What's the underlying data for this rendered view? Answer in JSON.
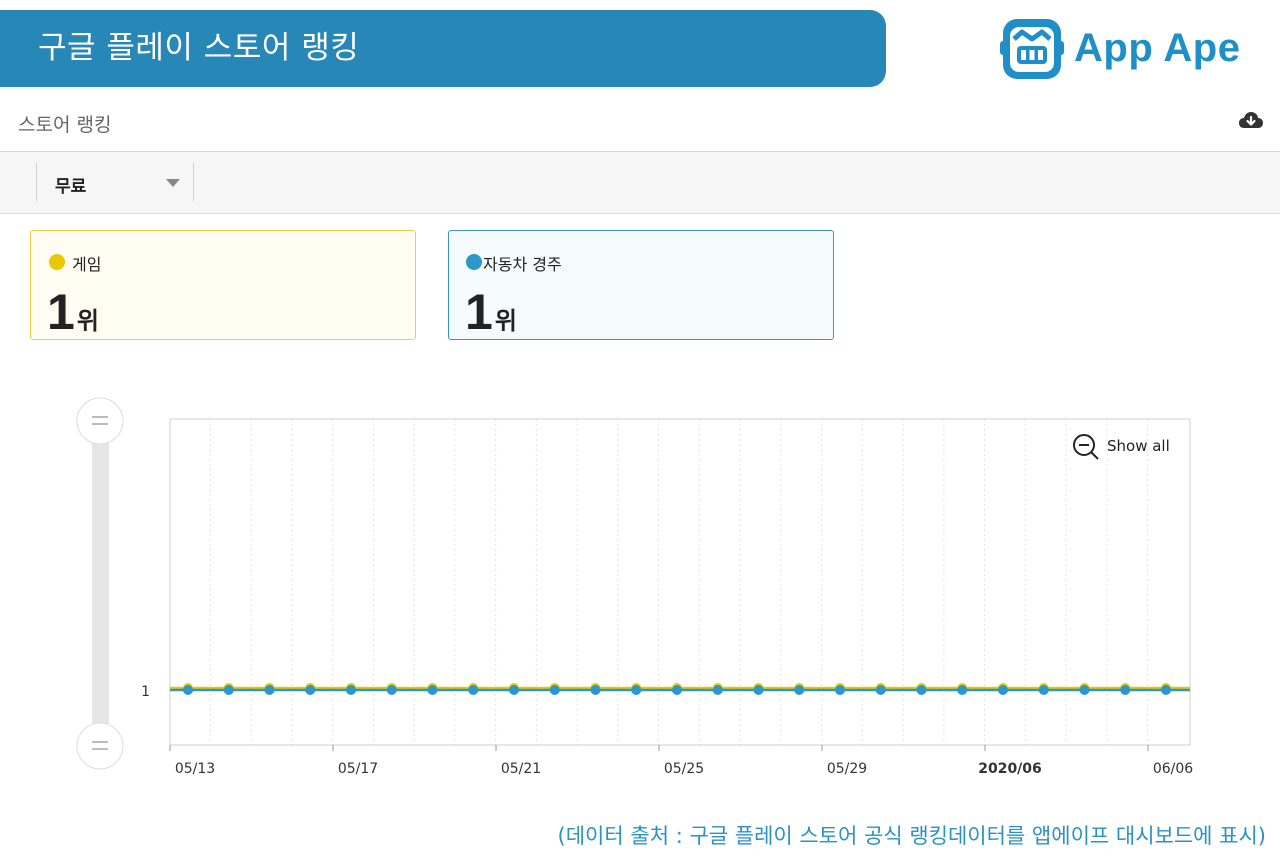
{
  "header": {
    "title": "구글 플레이 스토어 랭킹",
    "brand": "App Ape"
  },
  "section": {
    "title": "스토어 랭킹",
    "download_icon": "cloud-download-icon"
  },
  "filter": {
    "selected": "무료"
  },
  "cards": [
    {
      "label": "게임",
      "rank": "1",
      "unit": "위",
      "color": "#eac700"
    },
    {
      "label": "자동차 경주",
      "rank": "1",
      "unit": "위",
      "color": "#2c97c9"
    }
  ],
  "chart": {
    "zoom_label": "Show all"
  },
  "chart_data": {
    "type": "line",
    "title": "",
    "xlabel": "",
    "ylabel": "",
    "x_ticks": [
      "05/13",
      "05/17",
      "05/21",
      "05/25",
      "05/29",
      "2020/06",
      "06/06"
    ],
    "y_ticks": [
      "1"
    ],
    "x": [
      "05/13",
      "05/14",
      "05/15",
      "05/16",
      "05/17",
      "05/18",
      "05/19",
      "05/20",
      "05/21",
      "05/22",
      "05/23",
      "05/24",
      "05/25",
      "05/26",
      "05/27",
      "05/28",
      "05/29",
      "05/30",
      "05/31",
      "06/01",
      "06/02",
      "06/03",
      "06/04",
      "06/05",
      "06/06"
    ],
    "series": [
      {
        "values": [
          1,
          1,
          1,
          1,
          1,
          1,
          1,
          1,
          1,
          1,
          1,
          1,
          1,
          1,
          1,
          1,
          1,
          1,
          1,
          1,
          1,
          1,
          1,
          1,
          1
        ],
        "color": "#eac700"
      },
      {
        "values": [
          1,
          1,
          1,
          1,
          1,
          1,
          1,
          1,
          1,
          1,
          1,
          1,
          1,
          1,
          1,
          1,
          1,
          1,
          1,
          1,
          1,
          1,
          1,
          1,
          1
        ],
        "color": "#2c97c9"
      }
    ],
    "grid": true
  },
  "caption": "(데이터 출처 : 구글 플레이 스토어 공식 랭킹데이터를 앱에이프 대시보드에 표시)"
}
